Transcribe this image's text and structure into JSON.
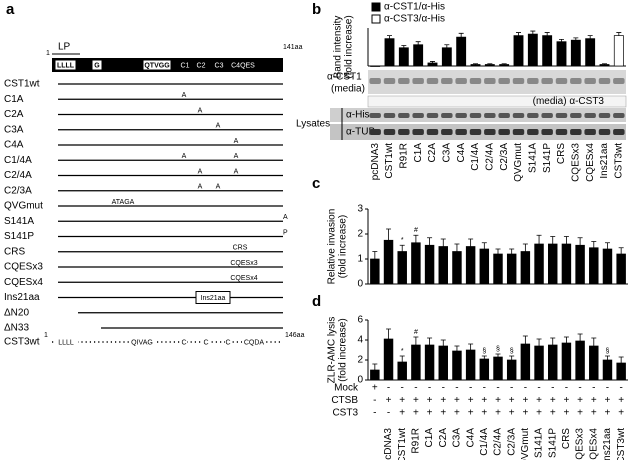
{
  "panel_labels": [
    "a",
    "b",
    "c",
    "d"
  ],
  "constructs": {
    "header": {
      "start": "1",
      "lp": "LP",
      "leader": "LLLL",
      "g": "G",
      "motif": "QTVGG",
      "c1": "C1",
      "c2": "C2",
      "c3": "C3",
      "c4": "C4QES",
      "end": "141aa"
    },
    "rows": [
      {
        "name": "CST1wt",
        "marks": []
      },
      {
        "name": "C1A",
        "marks": [
          "A"
        ]
      },
      {
        "name": "C2A",
        "marks": [
          "A"
        ]
      },
      {
        "name": "C3A",
        "marks": [
          "A"
        ]
      },
      {
        "name": "C4A",
        "marks": [
          "A"
        ]
      },
      {
        "name": "C1/4A",
        "marks": [
          "A",
          "A"
        ]
      },
      {
        "name": "C2/4A",
        "marks": [
          "A",
          "A"
        ]
      },
      {
        "name": "C2/3A",
        "marks": [
          "A",
          "A"
        ]
      },
      {
        "name": "QVGmut",
        "marks": [
          "ATAGA"
        ]
      },
      {
        "name": "S141A",
        "marks": [
          "A"
        ]
      },
      {
        "name": "S141P",
        "marks": [
          "P"
        ]
      },
      {
        "name": "CRS",
        "marks": [
          "CRS"
        ]
      },
      {
        "name": "CQESx3",
        "marks": [
          "CQESx3"
        ]
      },
      {
        "name": "CQESx4",
        "marks": [
          "CQESx4"
        ]
      },
      {
        "name": "Ins21aa",
        "marks": [
          "Ins21aa"
        ]
      },
      {
        "name": "ΔN20",
        "marks": []
      },
      {
        "name": "ΔN33",
        "marks": []
      }
    ],
    "cst3": {
      "name": "CST3wt",
      "start": "1",
      "marks": [
        "LLLL",
        "QIVAG",
        "C",
        "C",
        "C",
        "CQDA"
      ],
      "end": "146aa"
    }
  },
  "blot": {
    "cst1": "α-CST1",
    "media": "(media)",
    "cst3": "(media) α-CST3",
    "lysates": "Lysates",
    "his": "α-His",
    "tub": "α-TUB"
  },
  "chart_data": [
    {
      "type": "bar",
      "y_label": [
        "Band intensity",
        "(fold increase)"
      ],
      "categories": [
        "pcDNA3",
        "CST1wt",
        "R91R",
        "C1A",
        "C2A",
        "C3A",
        "C4A",
        "C1/4A",
        "C2/4A",
        "C2/3A",
        "QVGmut",
        "S141A",
        "S141P",
        "CRS",
        "CQESx3",
        "CQESx4",
        "Ins21aa",
        "CST3wt"
      ],
      "series": [
        {
          "name": "α-CST1/α-His",
          "color": "#000000",
          "values": [
            0,
            0.18,
            0.12,
            0.14,
            0.02,
            0.12,
            0.19,
            0.01,
            0.01,
            0.01,
            0.2,
            0.21,
            0.2,
            0.16,
            0.17,
            0.18,
            0.01,
            null
          ],
          "errors": [
            0,
            0.02,
            0.015,
            0.02,
            0.01,
            0.02,
            0.025,
            0.005,
            0.005,
            0.005,
            0.02,
            0.02,
            0.02,
            0.015,
            0.015,
            0.02,
            0.005,
            null
          ]
        },
        {
          "name": "α-CST3/α-His",
          "color": "#ffffff",
          "values": [
            null,
            null,
            null,
            null,
            null,
            null,
            null,
            null,
            null,
            null,
            null,
            null,
            null,
            null,
            null,
            null,
            null,
            0.2
          ],
          "errors": [
            null,
            null,
            null,
            null,
            null,
            null,
            null,
            null,
            null,
            null,
            null,
            null,
            null,
            null,
            null,
            null,
            null,
            0.02
          ]
        }
      ],
      "ylim": [
        0,
        0.25
      ]
    },
    {
      "type": "bar",
      "y_label": [
        "Relative invasion",
        "(fold increase)"
      ],
      "color": "#000000",
      "values": [
        1.0,
        1.75,
        1.3,
        1.65,
        1.55,
        1.5,
        1.3,
        1.5,
        1.4,
        1.2,
        1.2,
        1.3,
        1.6,
        1.6,
        1.6,
        1.55,
        1.45,
        1.4,
        1.2
      ],
      "errors": [
        0.3,
        0.45,
        0.25,
        0.3,
        0.3,
        0.3,
        0.3,
        0.3,
        0.25,
        0.2,
        0.2,
        0.3,
        0.35,
        0.3,
        0.3,
        0.3,
        0.25,
        0.25,
        0.25
      ],
      "annotations": [
        null,
        null,
        "*",
        "#",
        null,
        null,
        null,
        null,
        null,
        null,
        null,
        null,
        null,
        null,
        null,
        null,
        null,
        null,
        null
      ],
      "ylim": [
        0,
        3
      ],
      "yticks": [
        0,
        1,
        2,
        3
      ]
    },
    {
      "type": "bar",
      "y_label": [
        "ZLR-AMC lysis",
        "(fold increase)"
      ],
      "color": "#000000",
      "categories": [
        null,
        "pcDNA3",
        "CST1wt",
        "R91R",
        "C1A",
        "C2A",
        "C3A",
        "C4A",
        "C1/4A",
        "C2/4A",
        "C2/3A",
        "QVGmut",
        "S141A",
        "S141P",
        "CRS",
        "CQESx3",
        "CQESx4",
        "Ins21aa",
        "CST3wt"
      ],
      "values": [
        1.0,
        4.1,
        1.8,
        3.5,
        3.5,
        3.4,
        2.9,
        3.0,
        2.1,
        2.3,
        2.0,
        3.6,
        3.4,
        3.5,
        3.7,
        3.9,
        3.4,
        2.0,
        1.7
      ],
      "errors": [
        0.6,
        1.0,
        0.6,
        0.8,
        0.7,
        0.6,
        0.5,
        0.6,
        0.3,
        0.3,
        0.4,
        0.8,
        0.7,
        0.7,
        0.6,
        0.7,
        0.8,
        0.4,
        0.6
      ],
      "annotations": [
        null,
        null,
        "*",
        "#",
        null,
        null,
        null,
        null,
        "§",
        "§",
        "§",
        null,
        null,
        null,
        null,
        null,
        null,
        "§",
        null
      ],
      "ylim": [
        0,
        6
      ],
      "yticks": [
        0,
        2,
        4,
        6
      ],
      "table": [
        {
          "name": "Mock",
          "cells": [
            "+",
            "-",
            "-",
            "-",
            "-",
            "-",
            "-",
            "-",
            "-",
            "-",
            "-",
            "-",
            "-",
            "-",
            "-",
            "-",
            "-",
            "-",
            "-"
          ]
        },
        {
          "name": "CTSB",
          "cells": [
            "-",
            "+",
            "+",
            "+",
            "+",
            "+",
            "+",
            "+",
            "+",
            "+",
            "+",
            "+",
            "+",
            "+",
            "+",
            "+",
            "+",
            "+",
            "+"
          ]
        },
        {
          "name": "CST3",
          "cells": [
            "-",
            "-",
            "+",
            "+",
            "+",
            "+",
            "+",
            "+",
            "+",
            "+",
            "+",
            "+",
            "+",
            "+",
            "+",
            "+",
            "+",
            "+",
            "+"
          ]
        }
      ]
    }
  ]
}
